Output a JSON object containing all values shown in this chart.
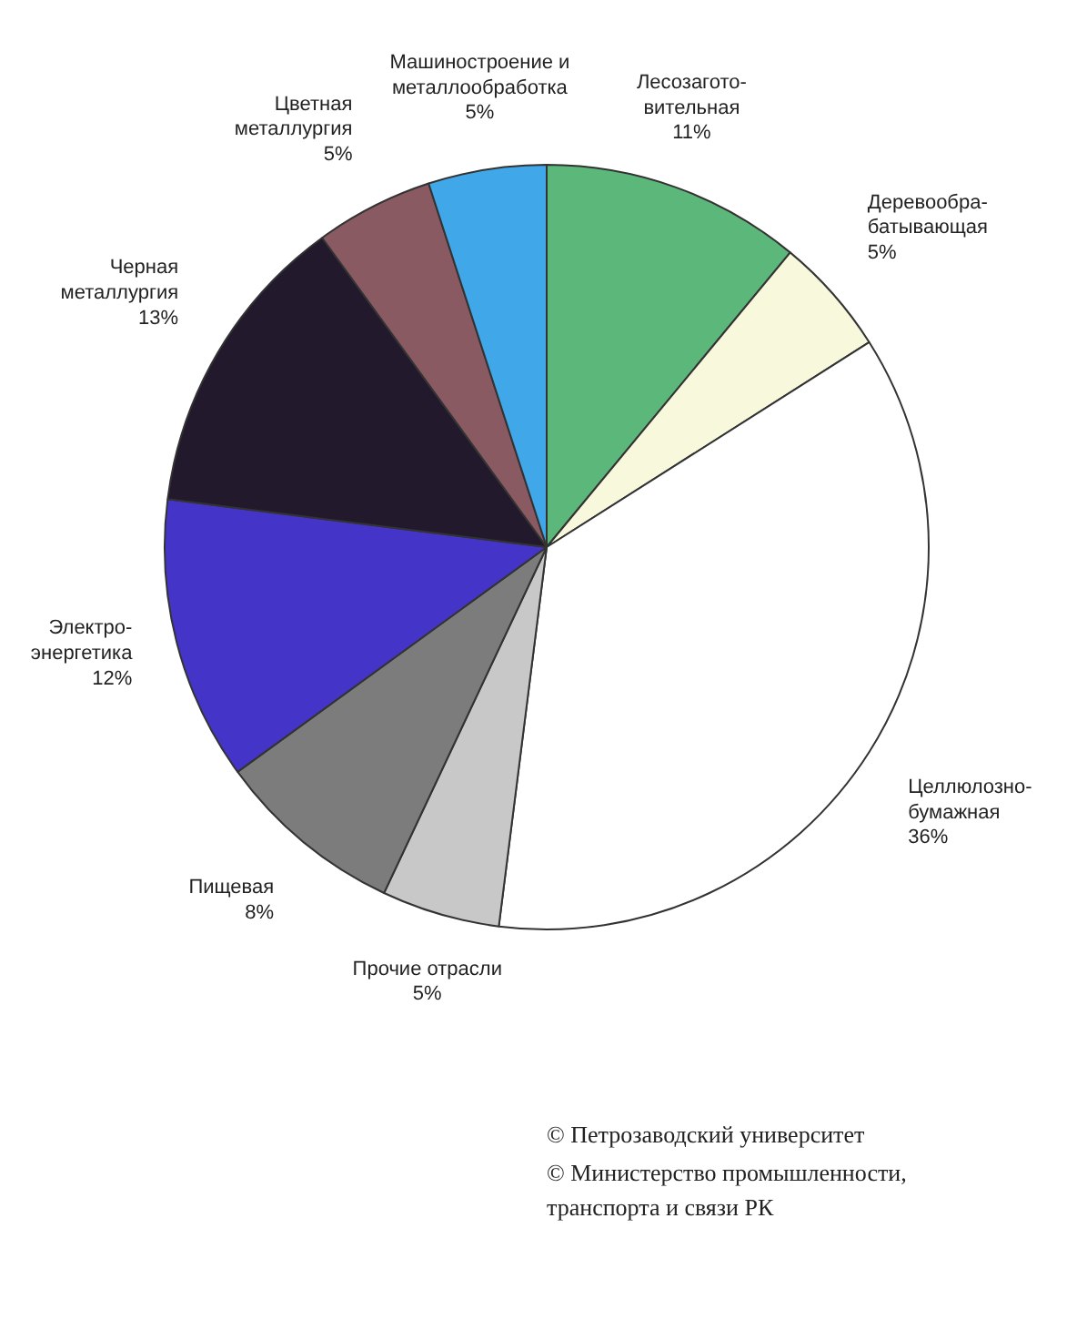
{
  "chart_data": {
    "type": "pie",
    "categories": [
      "Лесозагото-\nвительная",
      "Деревообра-\nбатывающая",
      "Целлюлозно-\nбумажная",
      "Прочие отрасли",
      "Пищевая",
      "Электро-\nэнергетика",
      "Черная\nметаллургия",
      "Цветная\nметаллургия",
      "Машиностроение и\nметаллообработка"
    ],
    "values": [
      11,
      5,
      36,
      5,
      8,
      12,
      13,
      5,
      5
    ],
    "value_labels": [
      "11%",
      "5%",
      "36%",
      "5%",
      "8%",
      "12%",
      "13%",
      "5%",
      "5%"
    ],
    "colors": [
      "#5cb87a",
      "#f8f8dc",
      "#ffffff",
      "#c8c8c8",
      "#7c7c7c",
      "#4434c8",
      "#221a2c",
      "#8a5a62",
      "#40a8e8"
    ],
    "annotations": [
      "© Петрозаводский  университет",
      "© Министерство промышленности,\n   транспорта и связи РК"
    ]
  }
}
